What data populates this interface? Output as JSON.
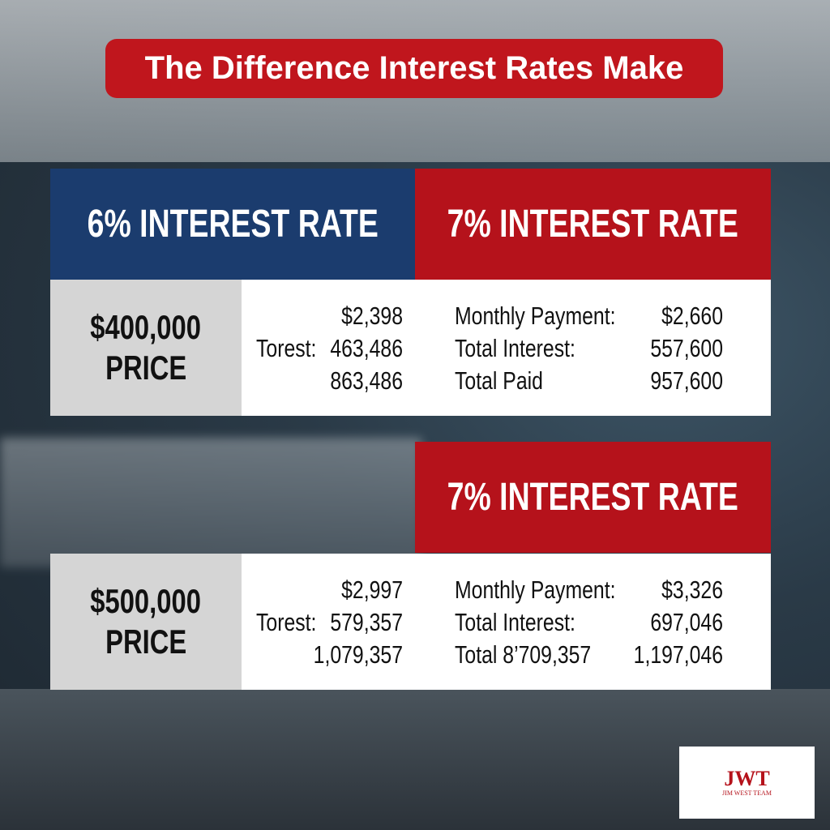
{
  "title": "The Difference Interest Rates Make",
  "section1": {
    "header_left": "6% INTEREST RATE",
    "header_right": "7% INTEREST RATE",
    "price_amount": "$400,000",
    "price_label": "PRICE",
    "left_rows": [
      {
        "label": "",
        "value": "$2,398"
      },
      {
        "label": "Torest:",
        "value": "463,486"
      },
      {
        "label": "",
        "value": "863,486"
      }
    ],
    "right_rows": [
      {
        "label": "Monthly Payment:",
        "value": "$2,660"
      },
      {
        "label": "Total Interest:",
        "value": "557,600"
      },
      {
        "label": "Total Paid",
        "value": "957,600"
      }
    ]
  },
  "section2": {
    "header_right": "7% INTEREST RATE",
    "price_amount": "$500,000",
    "price_label": "PRICE",
    "left_rows": [
      {
        "label": "",
        "value": "$2,997"
      },
      {
        "label": "Torest:",
        "value": "579,357"
      },
      {
        "label": "",
        "value": "1,079,357"
      }
    ],
    "right_rows": [
      {
        "label": "Monthly Payment:",
        "value": "$3,326"
      },
      {
        "label": "Total Interest:",
        "value": "697,046"
      },
      {
        "label": "Total 8’709,357",
        "value": "1,197,046"
      }
    ]
  },
  "logo": {
    "monogram": "JWT",
    "name": "JIM WEST TEAM"
  },
  "colors": {
    "red": "#b5121b",
    "blue": "#1b3c6e",
    "title_red": "#c0161d"
  }
}
